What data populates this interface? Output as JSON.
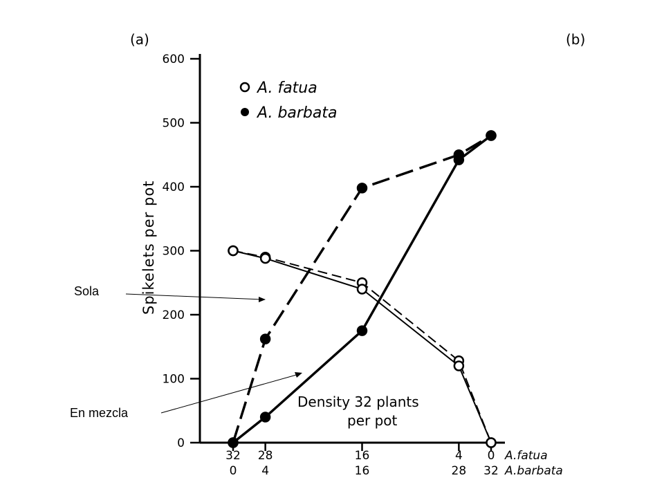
{
  "chart_data": {
    "type": "line",
    "panel_labels": [
      "(a)",
      "(b)"
    ],
    "ylabel": "Spikelets per pot",
    "ylim": [
      0,
      600
    ],
    "yticks": [
      0,
      100,
      200,
      300,
      400,
      500,
      600
    ],
    "x_rows": [
      {
        "name": "A.fatua",
        "values": [
          32,
          28,
          16,
          4,
          0
        ]
      },
      {
        "name": "A.barbata",
        "values": [
          0,
          4,
          16,
          28,
          32
        ]
      }
    ],
    "x": [
      32,
      28,
      16,
      4,
      0
    ],
    "legend": [
      {
        "name": "A. fatua",
        "marker": "open-circle"
      },
      {
        "name": "A. barbata",
        "marker": "filled-circle"
      }
    ],
    "annotation_lines": [
      "Density 32 plants",
      "per pot"
    ],
    "series": [
      {
        "species": "A. fatua",
        "style": "dashed",
        "marker": "open",
        "x": [
          32,
          28,
          16,
          4,
          0
        ],
        "y": [
          300,
          290,
          250,
          128,
          0
        ]
      },
      {
        "species": "A. fatua",
        "style": "solid",
        "marker": "open",
        "x": [
          32,
          28,
          16,
          4,
          0
        ],
        "y": [
          300,
          288,
          240,
          120,
          0
        ]
      },
      {
        "species": "A. barbata",
        "style": "dashed",
        "marker": "filled",
        "x": [
          32,
          28,
          16,
          4,
          0
        ],
        "y": [
          0,
          162,
          398,
          450,
          480
        ]
      },
      {
        "species": "A. barbata",
        "style": "solid",
        "marker": "filled",
        "x": [
          32,
          28,
          16,
          4,
          0
        ],
        "y": [
          0,
          40,
          175,
          442,
          480
        ]
      }
    ],
    "callouts": [
      {
        "text": "Sola",
        "points_to": "dashed"
      },
      {
        "text": "En mezcla",
        "points_to": "solid"
      }
    ]
  }
}
